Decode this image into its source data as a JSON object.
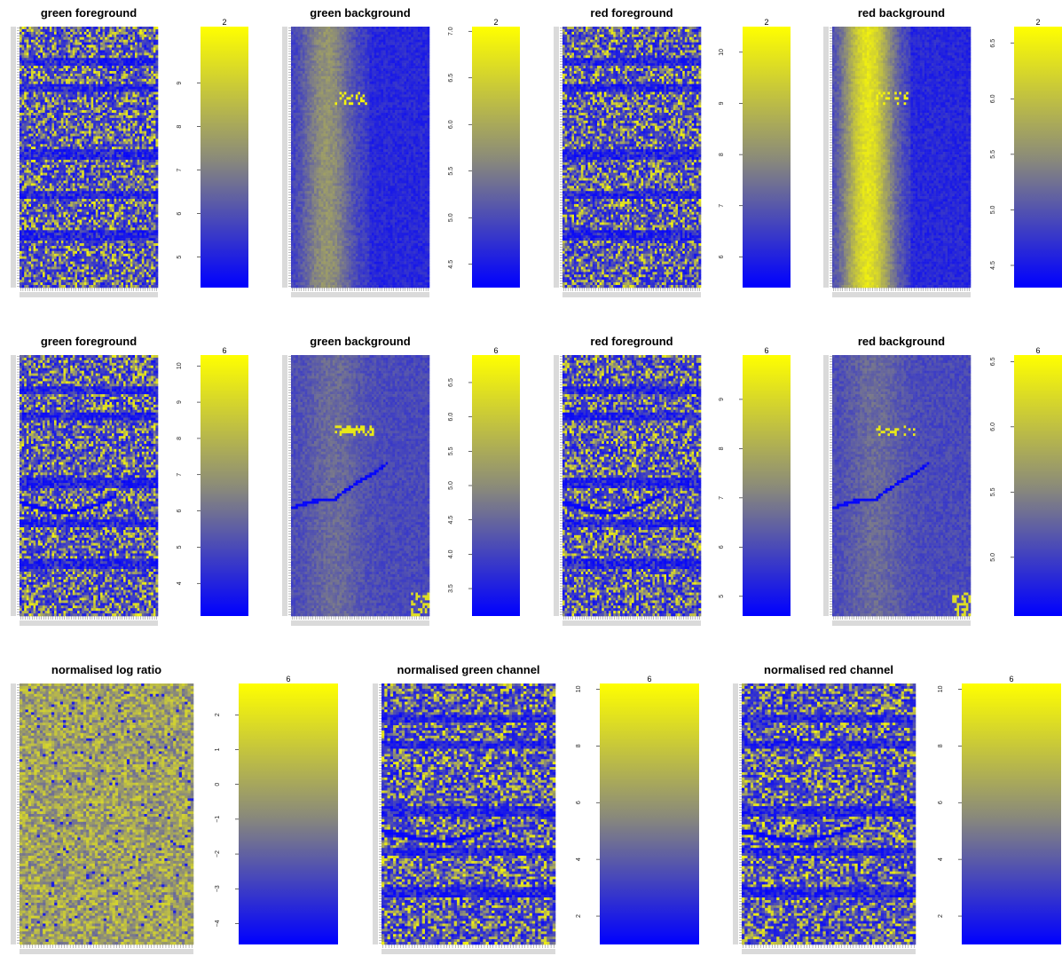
{
  "colors": {
    "low": "#0000ff",
    "mid": "#8c8c78",
    "high": "#ffff00"
  },
  "chart_data": [
    {
      "type": "heatmap",
      "title": "green foreground",
      "pattern": "fg",
      "key_label": "2",
      "scale": {
        "ticks": [
          "5",
          "6",
          "7",
          "8",
          "9"
        ],
        "range": [
          4.3,
          10.3
        ]
      }
    },
    {
      "type": "heatmap",
      "title": "green background",
      "pattern": "bg",
      "key_label": "2",
      "scale": {
        "ticks": [
          "4.5",
          "5.0",
          "5.5",
          "6.0",
          "6.5",
          "7.0"
        ],
        "range": [
          4.25,
          7.05
        ]
      }
    },
    {
      "type": "heatmap",
      "title": "red foreground",
      "pattern": "fg",
      "key_label": "2",
      "scale": {
        "ticks": [
          "6",
          "7",
          "8",
          "9",
          "10"
        ],
        "range": [
          5.4,
          10.5
        ]
      }
    },
    {
      "type": "heatmap",
      "title": "red background",
      "pattern": "bg2",
      "key_label": "2",
      "scale": {
        "ticks": [
          "4.5",
          "5.0",
          "5.5",
          "6.0",
          "6.5"
        ],
        "range": [
          4.3,
          6.65
        ]
      }
    },
    {
      "type": "heatmap",
      "title": "green foreground",
      "pattern": "fg_arc",
      "key_label": "6",
      "scale": {
        "ticks": [
          "4",
          "5",
          "6",
          "7",
          "8",
          "9",
          "10"
        ],
        "range": [
          3.1,
          10.3
        ]
      }
    },
    {
      "type": "heatmap",
      "title": "green background",
      "pattern": "bg_arc",
      "key_label": "6",
      "scale": {
        "ticks": [
          "3.5",
          "4.0",
          "4.5",
          "5.0",
          "5.5",
          "6.0",
          "6.5"
        ],
        "range": [
          3.1,
          6.9
        ]
      }
    },
    {
      "type": "heatmap",
      "title": "red foreground",
      "pattern": "fg_arc",
      "key_label": "6",
      "scale": {
        "ticks": [
          "5",
          "6",
          "7",
          "8",
          "9"
        ],
        "range": [
          4.6,
          9.9
        ]
      }
    },
    {
      "type": "heatmap",
      "title": "red background",
      "pattern": "bg_arc",
      "key_label": "6",
      "scale": {
        "ticks": [
          "5.0",
          "5.5",
          "6.0",
          "6.5"
        ],
        "range": [
          4.55,
          6.55
        ]
      }
    },
    {
      "type": "heatmap",
      "title": "normalised log ratio",
      "pattern": "ratio",
      "key_label": "6",
      "scale": {
        "ticks": [
          "−4",
          "−3",
          "−2",
          "−1",
          "0",
          "1",
          "2"
        ],
        "range": [
          -4.6,
          2.9
        ]
      }
    },
    {
      "type": "heatmap",
      "title": "normalised green channel",
      "pattern": "fg_arc",
      "key_label": "6",
      "scale": {
        "ticks": [
          "2",
          "4",
          "6",
          "8",
          "10"
        ],
        "range": [
          1.0,
          10.2
        ]
      }
    },
    {
      "type": "heatmap",
      "title": "normalised red channel",
      "pattern": "fg_arc",
      "key_label": "6",
      "scale": {
        "ticks": [
          "2",
          "4",
          "6",
          "8",
          "10"
        ],
        "range": [
          1.0,
          10.2
        ]
      }
    }
  ]
}
